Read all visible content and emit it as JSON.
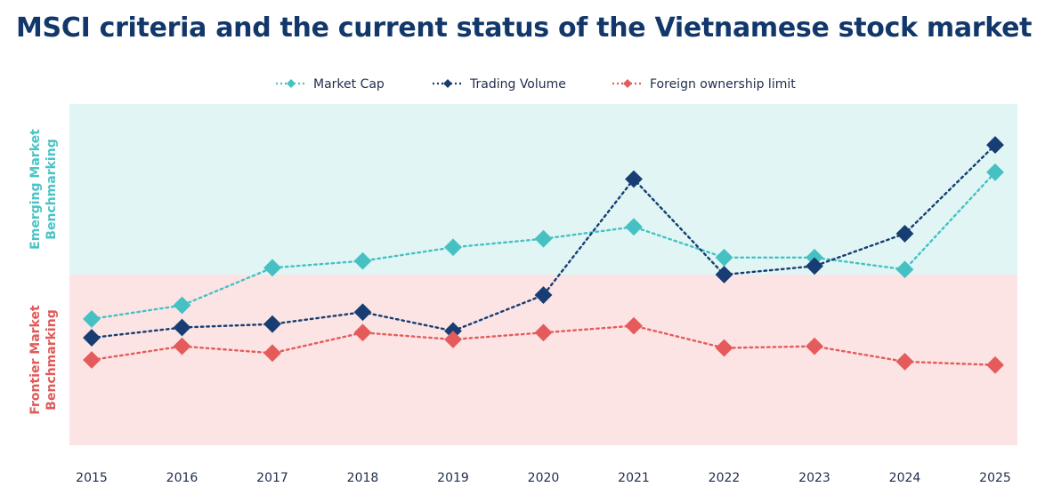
{
  "page": {
    "title": "MSCI criteria and the current status of the Vietnamese stock market"
  },
  "chart_data": {
    "type": "line",
    "title": "MSCI criteria and the current status of the Vietnamese stock market",
    "x": [
      "2015",
      "2016",
      "2017",
      "2018",
      "2019",
      "2020",
      "2021",
      "2022",
      "2023",
      "2024",
      "2025"
    ],
    "ylim": [
      0,
      100
    ],
    "bands": [
      {
        "label_lines": [
          "Emerging Market",
          "Benchmarking"
        ],
        "from": 50,
        "to": 100,
        "color": "#e1f5f4",
        "text_color": "#4cc3c6"
      },
      {
        "label_lines": [
          "Frontier Market",
          "Benchmarking"
        ],
        "from": 0,
        "to": 50,
        "color": "#fbe4e3",
        "text_color": "#e05a5a"
      }
    ],
    "series": [
      {
        "name": "Market Cap",
        "color": "#45c1c4",
        "values": [
          37,
          41,
          52,
          54,
          58,
          60.5,
          64,
          55,
          55,
          51.5,
          80
        ]
      },
      {
        "name": "Trading Volume",
        "color": "#173d73",
        "values": [
          31.5,
          34.5,
          35.5,
          39,
          33.5,
          44,
          78,
          50,
          52.5,
          62,
          88
        ]
      },
      {
        "name": "Foreign ownership limit",
        "color": "#e55b5b",
        "values": [
          25,
          29,
          27,
          33,
          31,
          33,
          35,
          28.5,
          29,
          24.5,
          23.5
        ]
      }
    ],
    "legend": "top-center",
    "grid": false
  }
}
